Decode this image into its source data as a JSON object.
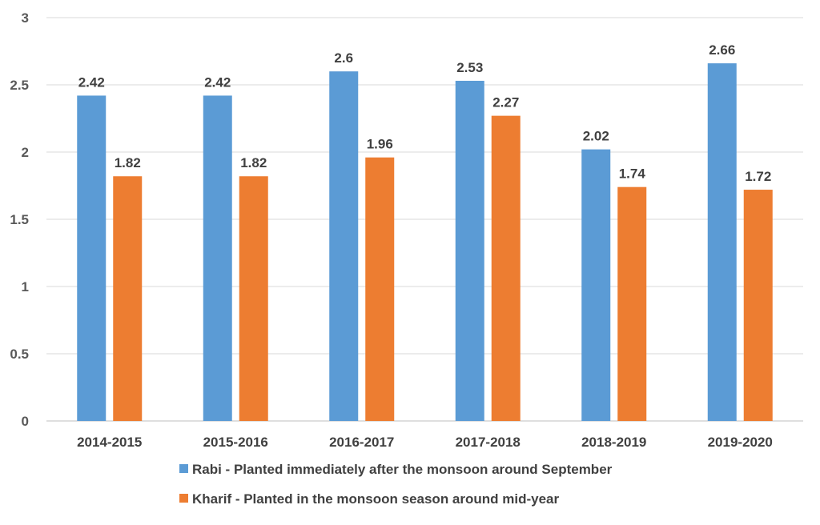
{
  "chart_data": {
    "type": "bar",
    "categories": [
      "2014-2015",
      "2015-2016",
      "2016-2017",
      "2017-2018",
      "2018-2019",
      "2019-2020"
    ],
    "series": [
      {
        "name": "Rabi - Planted immediately after the monsoon around September",
        "color": "#5B9BD5",
        "values": [
          2.42,
          2.42,
          2.6,
          2.53,
          2.02,
          2.66
        ]
      },
      {
        "name": "Kharif - Planted in the monsoon season around mid-year",
        "color": "#ED7D31",
        "values": [
          1.82,
          1.82,
          1.96,
          2.27,
          1.74,
          1.72
        ]
      }
    ],
    "yticks": [
      "0",
      "0.5",
      "1",
      "1.5",
      "2",
      "2.5",
      "3"
    ],
    "ylim": [
      0,
      3
    ],
    "grid": true,
    "data_labels": true,
    "legend_position": "bottom"
  }
}
